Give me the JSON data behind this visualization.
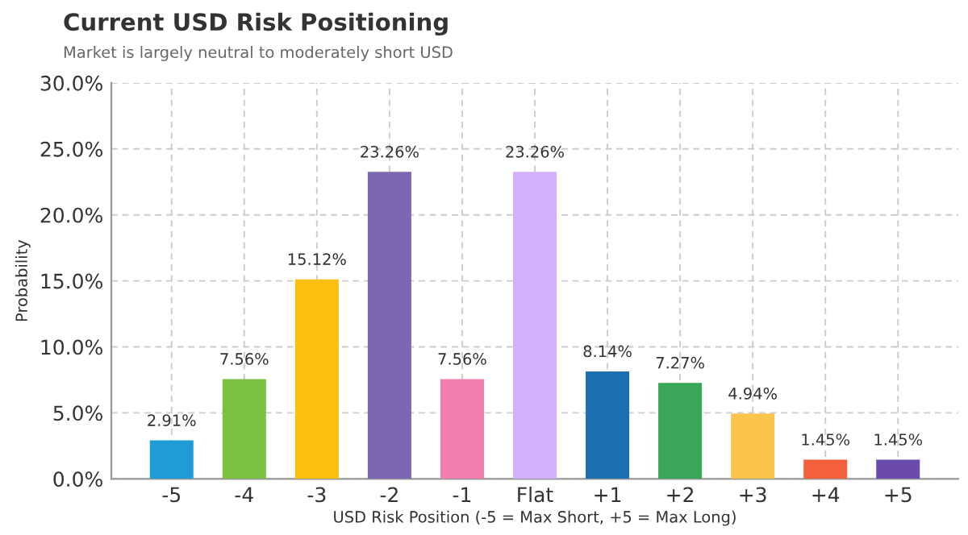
{
  "chart_data": {
    "type": "bar",
    "title": "Current USD Risk Positioning",
    "subtitle": "Market is largely neutral to moderately short USD",
    "xlabel": "USD Risk Position (-5 = Max Short, +5 = Max Long)",
    "ylabel": "Probability",
    "categories": [
      "-5",
      "-4",
      "-3",
      "-2",
      "-1",
      "Flat",
      "+1",
      "+2",
      "+3",
      "+4",
      "+5"
    ],
    "values": [
      2.91,
      7.56,
      15.12,
      23.26,
      7.56,
      23.26,
      8.14,
      7.27,
      4.94,
      1.45,
      1.45
    ],
    "value_labels": [
      "2.91%",
      "7.56%",
      "15.12%",
      "23.26%",
      "7.56%",
      "23.26%",
      "8.14%",
      "7.27%",
      "4.94%",
      "1.45%",
      "1.45%"
    ],
    "colors": [
      "#1f9bd6",
      "#7dc142",
      "#fbbf0f",
      "#7b68b0",
      "#f07fb0",
      "#d4b0fa",
      "#1a70b0",
      "#3aa657",
      "#fcc44c",
      "#f2603d",
      "#6a4bab"
    ],
    "ylim": [
      0,
      30
    ],
    "yticks": [
      {
        "value": 0,
        "label": "0.0%"
      },
      {
        "value": 5,
        "label": "5.0%"
      },
      {
        "value": 10,
        "label": "10.0%"
      },
      {
        "value": 15,
        "label": "15.0%"
      },
      {
        "value": 20,
        "label": "20.0%"
      },
      {
        "value": 25,
        "label": "25.0%"
      },
      {
        "value": 30,
        "label": "30.0%"
      }
    ],
    "grid": true,
    "legend": false
  }
}
